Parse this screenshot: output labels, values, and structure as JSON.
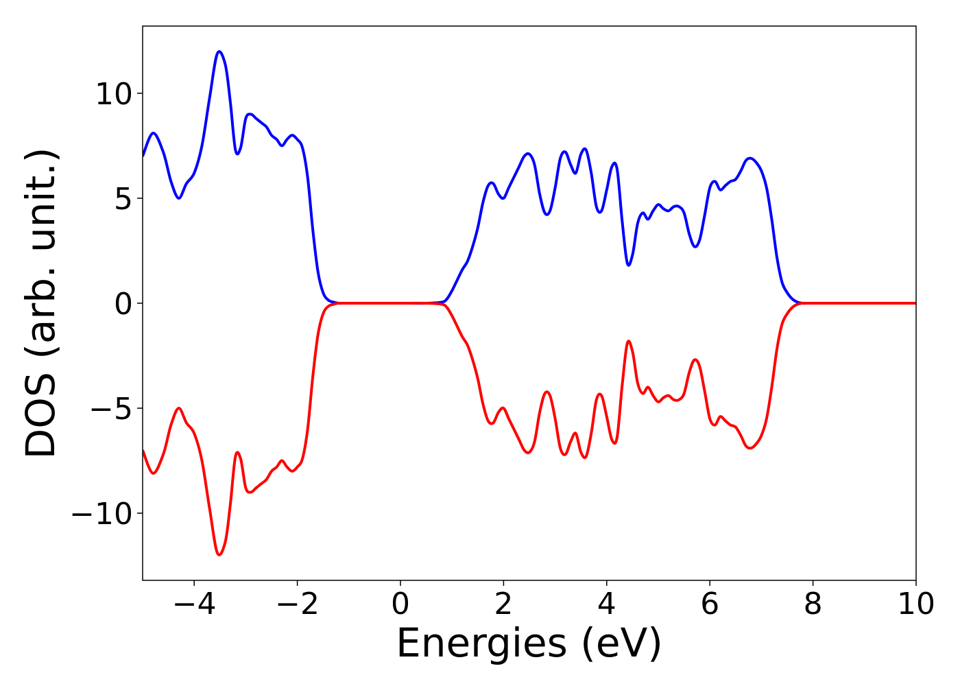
{
  "chart_data": {
    "type": "line",
    "title": "",
    "xlabel": "Energies (eV)",
    "ylabel": "DOS (arb. unit.)",
    "xlim": [
      -5,
      10
    ],
    "ylim": [
      -13.2,
      13.2
    ],
    "xticks": [
      -4,
      -2,
      0,
      2,
      4,
      6,
      8,
      10
    ],
    "xtick_labels": [
      "−4",
      "−2",
      "0",
      "2",
      "4",
      "6",
      "8",
      "10"
    ],
    "yticks": [
      10,
      5,
      0,
      -5,
      -10
    ],
    "ytick_labels": [
      "10",
      "5",
      "0",
      "−5",
      "−10"
    ],
    "grid": false,
    "legend": "none",
    "series": [
      {
        "color": "#0000ff",
        "x": [
          -5.0,
          -4.8,
          -4.6,
          -4.45,
          -4.3,
          -4.15,
          -4.0,
          -3.85,
          -3.7,
          -3.55,
          -3.4,
          -3.3,
          -3.2,
          -3.1,
          -3.0,
          -2.9,
          -2.8,
          -2.7,
          -2.6,
          -2.5,
          -2.4,
          -2.3,
          -2.2,
          -2.1,
          -2.0,
          -1.9,
          -1.8,
          -1.7,
          -1.6,
          -1.5,
          -1.4,
          -1.3,
          -1.2,
          -1.1,
          -1.0,
          -0.9,
          -0.8,
          -0.7,
          -0.6,
          -0.5,
          0.0,
          0.5,
          0.8,
          0.9,
          1.0,
          1.1,
          1.2,
          1.3,
          1.4,
          1.5,
          1.6,
          1.7,
          1.8,
          1.9,
          2.0,
          2.1,
          2.2,
          2.3,
          2.4,
          2.5,
          2.6,
          2.7,
          2.8,
          2.9,
          3.0,
          3.1,
          3.2,
          3.3,
          3.4,
          3.5,
          3.6,
          3.7,
          3.8,
          3.9,
          4.0,
          4.1,
          4.2,
          4.3,
          4.4,
          4.5,
          4.6,
          4.7,
          4.8,
          4.9,
          5.0,
          5.1,
          5.2,
          5.3,
          5.4,
          5.5,
          5.6,
          5.7,
          5.8,
          5.9,
          6.0,
          6.1,
          6.2,
          6.3,
          6.4,
          6.5,
          6.6,
          6.7,
          6.8,
          6.9,
          7.0,
          7.1,
          7.2,
          7.3,
          7.4,
          7.5,
          7.6,
          7.7,
          7.8,
          7.9,
          8.0,
          8.1,
          8.2,
          8.3,
          8.4,
          8.5,
          8.6,
          8.7,
          8.8,
          8.9,
          9.0,
          9.1,
          9.2,
          9.3,
          9.4,
          9.5,
          9.7,
          10.0
        ],
        "y": [
          7.0,
          8.1,
          7.2,
          5.8,
          5.0,
          5.7,
          6.2,
          7.5,
          9.8,
          11.9,
          11.4,
          9.6,
          7.3,
          7.4,
          8.8,
          9.0,
          8.8,
          8.6,
          8.4,
          8.0,
          7.8,
          7.5,
          7.8,
          8.0,
          7.8,
          7.4,
          6.0,
          3.5,
          1.5,
          0.5,
          0.15,
          0.05,
          0.0,
          0.0,
          0.0,
          0.0,
          0.0,
          0.0,
          0.0,
          0.0,
          0.0,
          0.0,
          0.05,
          0.2,
          0.6,
          1.1,
          1.6,
          2.0,
          2.7,
          3.6,
          4.8,
          5.6,
          5.7,
          5.2,
          5.0,
          5.5,
          6.0,
          6.5,
          7.0,
          7.1,
          6.6,
          5.2,
          4.3,
          4.4,
          5.5,
          6.9,
          7.2,
          6.6,
          6.2,
          7.1,
          7.3,
          6.2,
          4.6,
          4.4,
          5.4,
          6.5,
          6.4,
          3.9,
          1.9,
          2.3,
          3.8,
          4.3,
          4.0,
          4.4,
          4.7,
          4.5,
          4.4,
          4.6,
          4.6,
          4.3,
          3.3,
          2.7,
          3.0,
          4.2,
          5.5,
          5.8,
          5.4,
          5.6,
          5.8,
          5.9,
          6.3,
          6.8,
          6.9,
          6.7,
          6.3,
          5.5,
          4.0,
          2.2,
          1.0,
          0.5,
          0.2,
          0.05,
          0.0,
          0.0,
          0.0,
          0.0,
          0.0,
          0.0,
          0.0,
          0.0,
          0.0,
          0.0,
          0.0,
          0.0,
          0.0,
          0.0,
          0.0,
          0.0,
          0.0,
          0.0,
          0.0,
          0.0
        ]
      },
      {
        "color": "#ff0000",
        "x": [
          -5.0,
          -4.8,
          -4.6,
          -4.45,
          -4.3,
          -4.15,
          -4.0,
          -3.85,
          -3.7,
          -3.55,
          -3.4,
          -3.3,
          -3.2,
          -3.1,
          -3.0,
          -2.9,
          -2.8,
          -2.7,
          -2.6,
          -2.5,
          -2.4,
          -2.3,
          -2.2,
          -2.1,
          -2.0,
          -1.9,
          -1.8,
          -1.7,
          -1.6,
          -1.5,
          -1.4,
          -1.3,
          -1.2,
          -1.1,
          -1.0,
          -0.9,
          -0.8,
          -0.7,
          -0.6,
          -0.5,
          0.0,
          0.5,
          0.8,
          0.9,
          1.0,
          1.1,
          1.2,
          1.3,
          1.4,
          1.5,
          1.6,
          1.7,
          1.8,
          1.9,
          2.0,
          2.1,
          2.2,
          2.3,
          2.4,
          2.5,
          2.6,
          2.7,
          2.8,
          2.9,
          3.0,
          3.1,
          3.2,
          3.3,
          3.4,
          3.5,
          3.6,
          3.7,
          3.8,
          3.9,
          4.0,
          4.1,
          4.2,
          4.3,
          4.4,
          4.5,
          4.6,
          4.7,
          4.8,
          4.9,
          5.0,
          5.1,
          5.2,
          5.3,
          5.4,
          5.5,
          5.6,
          5.7,
          5.8,
          5.9,
          6.0,
          6.1,
          6.2,
          6.3,
          6.4,
          6.5,
          6.6,
          6.7,
          6.8,
          6.9,
          7.0,
          7.1,
          7.2,
          7.3,
          7.4,
          7.5,
          7.6,
          7.7,
          7.8,
          7.9,
          8.0,
          8.1,
          8.2,
          8.3,
          8.4,
          8.5,
          8.6,
          8.7,
          8.8,
          8.9,
          9.0,
          9.1,
          9.2,
          9.3,
          9.4,
          9.5,
          9.7,
          10.0
        ],
        "y": [
          -7.0,
          -8.1,
          -7.2,
          -5.8,
          -5.0,
          -5.7,
          -6.2,
          -7.5,
          -9.8,
          -11.9,
          -11.4,
          -9.6,
          -7.3,
          -7.4,
          -8.8,
          -9.0,
          -8.8,
          -8.6,
          -8.4,
          -8.0,
          -7.8,
          -7.5,
          -7.8,
          -8.0,
          -7.8,
          -7.4,
          -6.0,
          -3.5,
          -1.5,
          -0.5,
          -0.15,
          -0.05,
          0.0,
          0.0,
          0.0,
          0.0,
          0.0,
          0.0,
          0.0,
          0.0,
          0.0,
          0.0,
          -0.05,
          -0.2,
          -0.6,
          -1.1,
          -1.6,
          -2.0,
          -2.7,
          -3.6,
          -4.8,
          -5.6,
          -5.7,
          -5.2,
          -5.0,
          -5.5,
          -6.0,
          -6.5,
          -7.0,
          -7.1,
          -6.6,
          -5.2,
          -4.3,
          -4.4,
          -5.5,
          -6.9,
          -7.2,
          -6.6,
          -6.2,
          -7.1,
          -7.3,
          -6.2,
          -4.6,
          -4.4,
          -5.4,
          -6.5,
          -6.4,
          -3.9,
          -1.9,
          -2.3,
          -3.8,
          -4.3,
          -4.0,
          -4.4,
          -4.7,
          -4.5,
          -4.4,
          -4.6,
          -4.6,
          -4.3,
          -3.3,
          -2.7,
          -3.0,
          -4.2,
          -5.5,
          -5.8,
          -5.4,
          -5.6,
          -5.8,
          -5.9,
          -6.3,
          -6.8,
          -6.9,
          -6.7,
          -6.3,
          -5.5,
          -4.0,
          -2.2,
          -1.0,
          -0.5,
          -0.2,
          -0.05,
          0.0,
          0.0,
          0.0,
          0.0,
          0.0,
          0.0,
          0.0,
          0.0,
          0.0,
          0.0,
          0.0,
          0.0,
          0.0,
          0.0,
          0.0,
          0.0,
          0.0,
          0.0,
          0.0,
          0.0
        ]
      }
    ]
  }
}
